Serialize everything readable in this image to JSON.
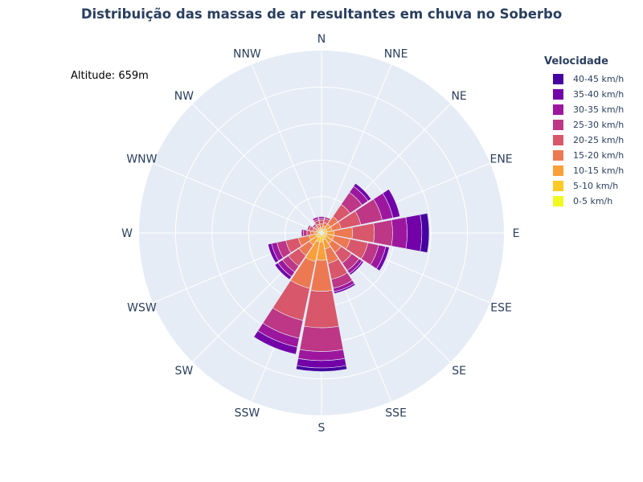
{
  "title": "Distribuição das massas de ar resultantes em chuva no Soberbo",
  "annotation": "Altitude: 659m",
  "chart_data": {
    "type": "barpolar",
    "title": "Distribuição das massas de ar resultantes em chuva no Soberbo",
    "directions": [
      "N",
      "NNE",
      "NE",
      "ENE",
      "E",
      "ESE",
      "SE",
      "SSE",
      "S",
      "SSW",
      "SW",
      "WSW",
      "W",
      "WNW",
      "NW",
      "NNW"
    ],
    "radial_range": [
      0,
      100
    ],
    "rotation_note": "clockwise, N at top",
    "legend_title": "Velocidade",
    "series": [
      {
        "name": "0-5 km/h",
        "color": "#f0f921",
        "values": [
          1,
          1,
          1,
          1,
          1,
          1,
          1,
          1,
          1,
          1,
          1,
          1,
          1,
          1,
          1,
          1
        ]
      },
      {
        "name": "5-10 km/h",
        "color": "#fdca26",
        "values": [
          1,
          1,
          2,
          2,
          2,
          2,
          2,
          3,
          4,
          4,
          2,
          2,
          1,
          1,
          1,
          1
        ]
      },
      {
        "name": "10-15 km/h",
        "color": "#fb9f3a",
        "values": [
          1,
          2,
          3,
          3,
          4,
          4,
          4,
          5,
          10,
          11,
          5,
          4,
          2,
          1,
          1,
          1
        ]
      },
      {
        "name": "15-20 km/h",
        "color": "#ed7953",
        "values": [
          2,
          2,
          5,
          5,
          10,
          9,
          6,
          8,
          17,
          15,
          7,
          6,
          2,
          2,
          1,
          2
        ]
      },
      {
        "name": "20-25 km/h",
        "color": "#d8576b",
        "values": [
          2,
          2,
          8,
          11,
          12,
          10,
          7,
          9,
          20,
          18,
          7,
          7,
          2,
          2,
          1,
          2
        ]
      },
      {
        "name": "25-30 km/h",
        "color": "#bd3786",
        "values": [
          1,
          1,
          8,
          12,
          10,
          6,
          5,
          5,
          13,
          10,
          4,
          5,
          2,
          1,
          1,
          1
        ]
      },
      {
        "name": "30-35 km/h",
        "color": "#9c179e",
        "values": [
          1,
          0,
          4,
          6,
          8,
          4,
          2,
          2,
          5,
          5,
          3,
          3,
          1,
          0,
          0,
          1
        ]
      },
      {
        "name": "35-40 km/h",
        "color": "#7201a8",
        "values": [
          0,
          0,
          2,
          4,
          8,
          2,
          1,
          1,
          4,
          4,
          2,
          2,
          0,
          0,
          0,
          0
        ]
      },
      {
        "name": "40-45 km/h",
        "color": "#46039f",
        "values": [
          0,
          0,
          0,
          0,
          4,
          0,
          0,
          0,
          2,
          0,
          0,
          0,
          0,
          0,
          0,
          0
        ]
      }
    ]
  }
}
